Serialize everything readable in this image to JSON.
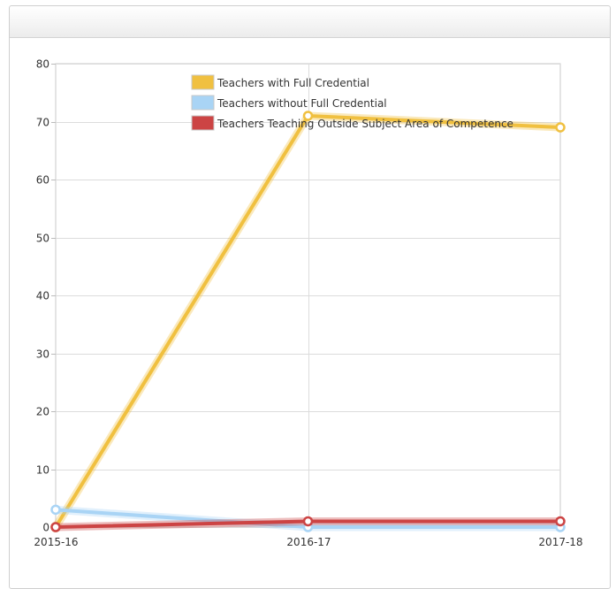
{
  "chart_data": {
    "type": "line",
    "categories": [
      "2015-16",
      "2016-17",
      "2017-18"
    ],
    "series": [
      {
        "name": "Teachers with Full Credential",
        "values": [
          0,
          71,
          69
        ],
        "color": "#f0c040"
      },
      {
        "name": "Teachers without Full Credential",
        "values": [
          3,
          0,
          0
        ],
        "color": "#a9d4f5"
      },
      {
        "name": "Teachers Teaching Outside Subject Area of Competence",
        "values": [
          0,
          1,
          1
        ],
        "color": "#cc4444"
      }
    ],
    "title": "",
    "xlabel": "",
    "ylabel": "",
    "ylim": [
      0,
      80
    ],
    "yticks": [
      "0",
      "10",
      "20",
      "30",
      "40",
      "50",
      "60",
      "70",
      "80"
    ],
    "grid": true,
    "legend_position": "top-center"
  }
}
